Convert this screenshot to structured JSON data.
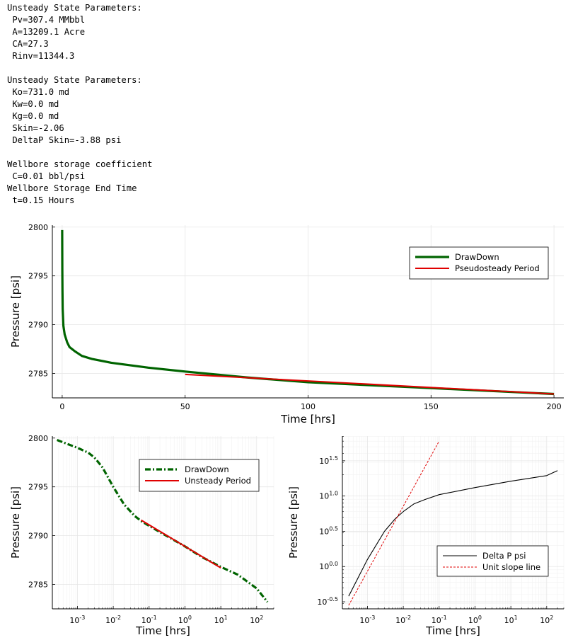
{
  "report": {
    "lines": [
      "Unsteady State Parameters:",
      " Pv=307.4 MMbbl",
      " A=13209.1 Acre",
      " CA=27.3",
      " Rinv=11344.3",
      "",
      "Unsteady State Parameters:",
      " Ko=731.0 md",
      " Kw=0.0 md",
      " Kg=0.0 md",
      " Skin=-2.06",
      " DeltaP Skin=-3.88 psi",
      "",
      "Wellbore storage coefficient",
      " C=0.01 bbl/psi",
      "Wellbore Storage End Time",
      " t=0.15 Hours"
    ]
  },
  "chart_data": [
    {
      "type": "line",
      "xlabel": "Time [hrs]",
      "ylabel": "Pressure [psi]",
      "xlim": [
        -4,
        204
      ],
      "ylim": [
        2782.5,
        2800.2
      ],
      "x_ticks": [
        0,
        50,
        100,
        150,
        200
      ],
      "y_ticks": [
        2785,
        2790,
        2795,
        2800
      ],
      "grid": true,
      "legend_position": "top-right",
      "series": [
        {
          "name": "DrawDown",
          "color": "#006400",
          "style": "solid",
          "x": [
            0,
            0.02,
            0.05,
            0.1,
            0.2,
            0.5,
            1,
            2,
            3,
            5,
            8,
            12,
            20,
            35,
            50,
            75,
            100,
            150,
            200
          ],
          "y": [
            2799.7,
            2797.5,
            2795.5,
            2793.5,
            2791.6,
            2789.9,
            2789.0,
            2788.2,
            2787.7,
            2787.3,
            2786.8,
            2786.5,
            2786.1,
            2785.6,
            2785.2,
            2784.6,
            2784.1,
            2783.5,
            2782.9
          ]
        },
        {
          "name": "Pseudosteady Period",
          "color": "#e00000",
          "style": "solid",
          "x": [
            50,
            200
          ],
          "y": [
            2784.9,
            2782.9
          ]
        }
      ]
    },
    {
      "type": "line",
      "xscale": "log",
      "xlabel": "Time [hrs]",
      "ylabel": "Pressure [psi]",
      "xlim": [
        0.0002,
        300
      ],
      "ylim": [
        2782.5,
        2800.2
      ],
      "x_ticks": [
        "10^-3",
        "10^-2",
        "10^-1",
        "10^0",
        "10^1",
        "10^2"
      ],
      "y_ticks": [
        2785,
        2790,
        2795,
        2800
      ],
      "grid": true,
      "legend_position": "top-right",
      "series": [
        {
          "name": "DrawDown",
          "color": "#006400",
          "style": "dash-dot",
          "x": [
            0.00027,
            0.001,
            0.002,
            0.003,
            0.005,
            0.01,
            0.02,
            0.04,
            0.06,
            0.1,
            0.3,
            1,
            3,
            10,
            30,
            100,
            200
          ],
          "y": [
            2799.8,
            2799.0,
            2798.5,
            2798.0,
            2797.0,
            2795.0,
            2793.2,
            2792.0,
            2791.5,
            2791.0,
            2790.0,
            2788.9,
            2787.8,
            2786.8,
            2786.0,
            2784.6,
            2783.2
          ]
        },
        {
          "name": "Unsteady Period",
          "color": "#e00000",
          "style": "solid",
          "x": [
            0.06,
            10
          ],
          "y": [
            2791.6,
            2786.7
          ]
        }
      ]
    },
    {
      "type": "line",
      "xscale": "log",
      "yscale": "log",
      "xlabel": "Time [hrs]",
      "ylabel": "Pressure [psi]",
      "xlim": [
        0.0002,
        300
      ],
      "ylim_log10": [
        -0.6,
        1.85
      ],
      "x_ticks": [
        "10^-3",
        "10^-2",
        "10^-1",
        "10^0",
        "10^1",
        "10^2"
      ],
      "y_ticks": [
        "10^-0.5",
        "10^0.0",
        "10^0.5",
        "10^1.0",
        "10^1.5"
      ],
      "grid": true,
      "legend_position": "bottom-right",
      "series": [
        {
          "name": "Delta P psi",
          "color": "#000000",
          "style": "solid",
          "x": [
            0.0003,
            0.001,
            0.003,
            0.006,
            0.01,
            0.02,
            0.04,
            0.1,
            1,
            10,
            100,
            200
          ],
          "y_log10": [
            -0.42,
            0.1,
            0.5,
            0.68,
            0.78,
            0.89,
            0.95,
            1.02,
            1.12,
            1.21,
            1.29,
            1.36
          ]
        },
        {
          "name": "Unit slope line",
          "color": "#e00000",
          "style": "dashed",
          "x": [
            0.0003,
            0.1
          ],
          "y_log10": [
            -0.55,
            1.78
          ]
        }
      ]
    }
  ]
}
